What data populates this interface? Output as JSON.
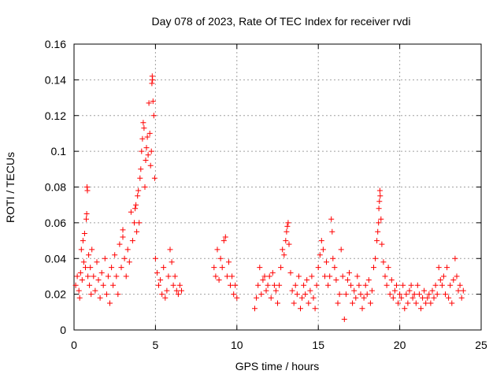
{
  "chart_data": {
    "type": "scatter",
    "title": "Day 078 of 2023, Rate Of TEC Index for receiver rvdi",
    "xlabel": "GPS time / hours",
    "ylabel": "ROTI / TECUs",
    "xlim": [
      0,
      25
    ],
    "ylim": [
      0,
      0.16
    ],
    "x_ticks": [
      "0",
      "5",
      "10",
      "15",
      "20",
      "25"
    ],
    "y_ticks": [
      "0",
      "0.02",
      "0.04",
      "0.06",
      "0.08",
      "0.1",
      "0.12",
      "0.14",
      "0.16"
    ],
    "grid": true,
    "marker": "plus",
    "color": "#ff0000",
    "series": [
      {
        "points": [
          [
            0.1,
            0.025
          ],
          [
            0.2,
            0.03
          ],
          [
            0.3,
            0.022
          ],
          [
            0.35,
            0.018
          ],
          [
            0.4,
            0.032
          ],
          [
            0.45,
            0.045
          ],
          [
            0.5,
            0.028
          ],
          [
            0.55,
            0.05
          ],
          [
            0.6,
            0.038
          ],
          [
            0.65,
            0.054
          ],
          [
            0.7,
            0.035
          ],
          [
            0.75,
            0.062
          ],
          [
            0.78,
            0.065
          ],
          [
            0.8,
            0.08
          ],
          [
            0.82,
            0.078
          ],
          [
            0.85,
            0.03
          ],
          [
            0.9,
            0.042
          ],
          [
            0.95,
            0.025
          ],
          [
            1.0,
            0.035
          ],
          [
            1.05,
            0.02
          ],
          [
            1.1,
            0.045
          ],
          [
            1.2,
            0.03
          ],
          [
            1.3,
            0.022
          ],
          [
            1.4,
            0.038
          ],
          [
            1.5,
            0.028
          ],
          [
            1.6,
            0.018
          ],
          [
            1.7,
            0.032
          ],
          [
            1.8,
            0.025
          ],
          [
            1.9,
            0.04
          ],
          [
            2.0,
            0.02
          ],
          [
            2.1,
            0.03
          ],
          [
            2.2,
            0.015
          ],
          [
            2.3,
            0.035
          ],
          [
            2.4,
            0.025
          ],
          [
            2.5,
            0.042
          ],
          [
            2.6,
            0.03
          ],
          [
            2.7,
            0.02
          ],
          [
            2.8,
            0.048
          ],
          [
            2.9,
            0.035
          ],
          [
            3.0,
            0.052
          ],
          [
            3.0,
            0.056
          ],
          [
            3.1,
            0.04
          ],
          [
            3.2,
            0.03
          ],
          [
            3.3,
            0.045
          ],
          [
            3.4,
            0.038
          ],
          [
            3.5,
            0.066
          ],
          [
            3.6,
            0.05
          ],
          [
            3.7,
            0.06
          ],
          [
            3.75,
            0.068
          ],
          [
            3.8,
            0.07
          ],
          [
            3.85,
            0.055
          ],
          [
            3.9,
            0.075
          ],
          [
            3.95,
            0.078
          ],
          [
            4.0,
            0.06
          ],
          [
            4.05,
            0.085
          ],
          [
            4.1,
            0.09
          ],
          [
            4.15,
            0.1
          ],
          [
            4.2,
            0.107
          ],
          [
            4.25,
            0.116
          ],
          [
            4.3,
            0.113
          ],
          [
            4.35,
            0.08
          ],
          [
            4.4,
            0.095
          ],
          [
            4.45,
            0.102
          ],
          [
            4.5,
            0.108
          ],
          [
            4.55,
            0.098
          ],
          [
            4.6,
            0.127
          ],
          [
            4.65,
            0.11
          ],
          [
            4.7,
            0.092
          ],
          [
            4.75,
            0.1
          ],
          [
            4.78,
            0.138
          ],
          [
            4.8,
            0.142
          ],
          [
            4.82,
            0.14
          ],
          [
            4.85,
            0.128
          ],
          [
            4.9,
            0.12
          ],
          [
            4.95,
            0.085
          ],
          [
            5.0,
            0.04
          ],
          [
            5.1,
            0.032
          ],
          [
            5.2,
            0.025
          ],
          [
            5.3,
            0.028
          ],
          [
            5.4,
            0.02
          ],
          [
            5.5,
            0.035
          ],
          [
            5.6,
            0.018
          ],
          [
            5.7,
            0.022
          ],
          [
            5.8,
            0.03
          ],
          [
            5.9,
            0.045
          ],
          [
            6.0,
            0.038
          ],
          [
            6.1,
            0.025
          ],
          [
            6.2,
            0.03
          ],
          [
            6.3,
            0.022
          ],
          [
            6.4,
            0.02
          ],
          [
            6.5,
            0.025
          ],
          [
            6.6,
            0.022
          ],
          [
            8.6,
            0.035
          ],
          [
            8.7,
            0.03
          ],
          [
            8.8,
            0.045
          ],
          [
            8.9,
            0.028
          ],
          [
            9.0,
            0.04
          ],
          [
            9.1,
            0.035
          ],
          [
            9.2,
            0.05
          ],
          [
            9.3,
            0.052
          ],
          [
            9.4,
            0.03
          ],
          [
            9.5,
            0.038
          ],
          [
            9.6,
            0.025
          ],
          [
            9.7,
            0.03
          ],
          [
            9.8,
            0.02
          ],
          [
            9.9,
            0.025
          ],
          [
            10.0,
            0.018
          ],
          [
            11.1,
            0.012
          ],
          [
            11.2,
            0.018
          ],
          [
            11.3,
            0.025
          ],
          [
            11.4,
            0.035
          ],
          [
            11.5,
            0.02
          ],
          [
            11.6,
            0.028
          ],
          [
            11.7,
            0.03
          ],
          [
            11.8,
            0.022
          ],
          [
            11.9,
            0.025
          ],
          [
            12.0,
            0.03
          ],
          [
            12.1,
            0.018
          ],
          [
            12.2,
            0.032
          ],
          [
            12.3,
            0.025
          ],
          [
            12.4,
            0.022
          ],
          [
            12.5,
            0.015
          ],
          [
            12.6,
            0.025
          ],
          [
            12.7,
            0.035
          ],
          [
            12.8,
            0.045
          ],
          [
            12.9,
            0.042
          ],
          [
            13.0,
            0.05
          ],
          [
            13.05,
            0.055
          ],
          [
            13.1,
            0.058
          ],
          [
            13.15,
            0.06
          ],
          [
            13.2,
            0.048
          ],
          [
            13.3,
            0.032
          ],
          [
            13.4,
            0.022
          ],
          [
            13.5,
            0.015
          ],
          [
            13.6,
            0.025
          ],
          [
            13.7,
            0.02
          ],
          [
            13.8,
            0.03
          ],
          [
            13.9,
            0.012
          ],
          [
            14.0,
            0.018
          ],
          [
            14.1,
            0.025
          ],
          [
            14.2,
            0.02
          ],
          [
            14.3,
            0.028
          ],
          [
            14.4,
            0.015
          ],
          [
            14.5,
            0.022
          ],
          [
            14.6,
            0.03
          ],
          [
            14.7,
            0.018
          ],
          [
            14.8,
            0.012
          ],
          [
            14.9,
            0.025
          ],
          [
            15.0,
            0.035
          ],
          [
            15.1,
            0.042
          ],
          [
            15.2,
            0.05
          ],
          [
            15.3,
            0.045
          ],
          [
            15.4,
            0.03
          ],
          [
            15.5,
            0.038
          ],
          [
            15.6,
            0.025
          ],
          [
            15.7,
            0.03
          ],
          [
            15.8,
            0.062
          ],
          [
            15.85,
            0.055
          ],
          [
            15.9,
            0.04
          ],
          [
            16.0,
            0.035
          ],
          [
            16.1,
            0.028
          ],
          [
            16.2,
            0.015
          ],
          [
            16.3,
            0.02
          ],
          [
            16.4,
            0.045
          ],
          [
            16.5,
            0.03
          ],
          [
            16.6,
            0.006
          ],
          [
            16.7,
            0.02
          ],
          [
            16.8,
            0.028
          ],
          [
            16.9,
            0.032
          ],
          [
            17.0,
            0.025
          ],
          [
            17.1,
            0.015
          ],
          [
            17.2,
            0.022
          ],
          [
            17.3,
            0.018
          ],
          [
            17.4,
            0.03
          ],
          [
            17.5,
            0.025
          ],
          [
            17.6,
            0.02
          ],
          [
            17.7,
            0.012
          ],
          [
            17.8,
            0.018
          ],
          [
            17.9,
            0.025
          ],
          [
            18.0,
            0.02
          ],
          [
            18.1,
            0.028
          ],
          [
            18.2,
            0.015
          ],
          [
            18.3,
            0.022
          ],
          [
            18.4,
            0.035
          ],
          [
            18.5,
            0.04
          ],
          [
            18.6,
            0.05
          ],
          [
            18.65,
            0.055
          ],
          [
            18.7,
            0.06
          ],
          [
            18.72,
            0.068
          ],
          [
            18.75,
            0.072
          ],
          [
            18.78,
            0.078
          ],
          [
            18.8,
            0.075
          ],
          [
            18.85,
            0.062
          ],
          [
            18.9,
            0.048
          ],
          [
            19.0,
            0.038
          ],
          [
            19.1,
            0.03
          ],
          [
            19.2,
            0.025
          ],
          [
            19.3,
            0.035
          ],
          [
            19.4,
            0.02
          ],
          [
            19.5,
            0.028
          ],
          [
            19.6,
            0.018
          ],
          [
            19.7,
            0.022
          ],
          [
            19.8,
            0.025
          ],
          [
            19.9,
            0.015
          ],
          [
            20.0,
            0.02
          ],
          [
            20.1,
            0.018
          ],
          [
            20.2,
            0.025
          ],
          [
            20.3,
            0.012
          ],
          [
            20.4,
            0.02
          ],
          [
            20.5,
            0.015
          ],
          [
            20.6,
            0.022
          ],
          [
            20.7,
            0.025
          ],
          [
            20.8,
            0.018
          ],
          [
            20.9,
            0.02
          ],
          [
            21.0,
            0.015
          ],
          [
            21.1,
            0.025
          ],
          [
            21.2,
            0.02
          ],
          [
            21.3,
            0.012
          ],
          [
            21.4,
            0.018
          ],
          [
            21.5,
            0.022
          ],
          [
            21.6,
            0.015
          ],
          [
            21.7,
            0.018
          ],
          [
            21.8,
            0.02
          ],
          [
            21.9,
            0.015
          ],
          [
            22.0,
            0.022
          ],
          [
            22.1,
            0.018
          ],
          [
            22.2,
            0.025
          ],
          [
            22.3,
            0.02
          ],
          [
            22.4,
            0.035
          ],
          [
            22.5,
            0.028
          ],
          [
            22.6,
            0.025
          ],
          [
            22.7,
            0.03
          ],
          [
            22.8,
            0.02
          ],
          [
            22.9,
            0.035
          ],
          [
            23.0,
            0.018
          ],
          [
            23.1,
            0.025
          ],
          [
            23.2,
            0.015
          ],
          [
            23.3,
            0.028
          ],
          [
            23.4,
            0.04
          ],
          [
            23.5,
            0.03
          ],
          [
            23.6,
            0.022
          ],
          [
            23.7,
            0.025
          ],
          [
            23.8,
            0.018
          ],
          [
            23.9,
            0.022
          ]
        ]
      }
    ]
  }
}
